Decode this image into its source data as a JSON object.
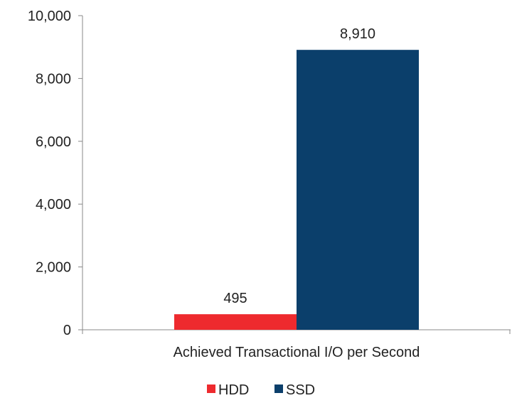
{
  "chart_data": {
    "type": "bar",
    "categories": [
      "Achieved Transactional I/O per Second"
    ],
    "series": [
      {
        "name": "HDD",
        "values": [
          495
        ],
        "color": "#ee2a2e"
      },
      {
        "name": "SSD",
        "values": [
          8910
        ],
        "color": "#0b3f6b"
      }
    ],
    "y_ticks": [
      "0",
      "2,000",
      "4,000",
      "6,000",
      "8,000",
      "10,000"
    ],
    "y_tick_values": [
      0,
      2000,
      4000,
      6000,
      8000,
      10000
    ],
    "data_labels": [
      "495",
      "8,910"
    ],
    "ylim": [
      0,
      10000
    ],
    "grid": false,
    "legend_position": "bottom",
    "title": "",
    "xlabel": "",
    "ylabel": ""
  }
}
